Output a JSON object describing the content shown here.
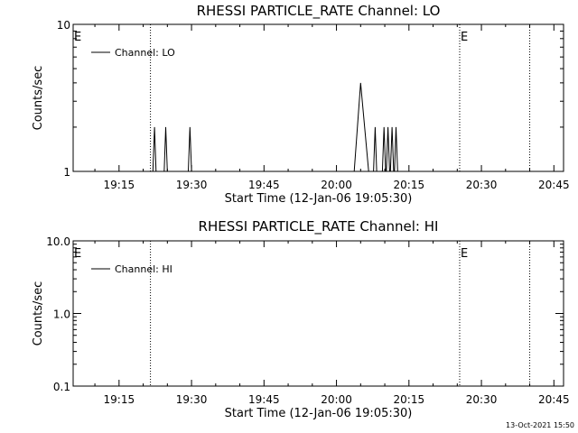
{
  "chart_data": [
    {
      "type": "line",
      "title": "RHESSI PARTICLE_RATE Channel: LO",
      "xlabel": "Start Time (12-Jan-06 19:05:30)",
      "ylabel": "Counts/sec",
      "y_scale": "log",
      "ylim": [
        1,
        10
      ],
      "y_ticks": [
        1,
        10
      ],
      "y_tick_labels": [
        "1",
        "10"
      ],
      "xlim": [
        "19:05:30",
        "20:47:00"
      ],
      "x_ticks": [
        "19:15",
        "19:30",
        "19:45",
        "20:00",
        "20:15",
        "20:30",
        "20:45"
      ],
      "legend": {
        "position": "top-left",
        "entries": [
          "Channel: LO"
        ]
      },
      "event_lines": [
        "19:21:30",
        "20:25:30",
        "20:40:00"
      ],
      "markers": [
        {
          "label": "E",
          "time": "19:05:30"
        },
        {
          "label": "E",
          "time": "20:25:30"
        }
      ],
      "series": [
        {
          "name": "Channel: LO",
          "x": [
            "19:22:00",
            "19:22:20",
            "19:22:40",
            "19:24:20",
            "19:24:40",
            "19:25:00",
            "19:29:20",
            "19:29:40",
            "19:30:00",
            "20:03:40",
            "20:05:00",
            "20:06:40",
            "20:07:40",
            "20:08:00",
            "20:08:20",
            "20:09:30",
            "20:09:50",
            "20:10:10",
            "20:10:20",
            "20:10:40",
            "20:11:00",
            "20:11:10",
            "20:11:30",
            "20:11:50",
            "20:12:00",
            "20:12:20",
            "20:12:40"
          ],
          "y": [
            1,
            2,
            1,
            1,
            2,
            1,
            1,
            2,
            1,
            1,
            4,
            1,
            1,
            2,
            1,
            1,
            2,
            1,
            1,
            2,
            1,
            1,
            2,
            1,
            1,
            2,
            1
          ]
        }
      ]
    },
    {
      "type": "line",
      "title": "RHESSI PARTICLE_RATE Channel: HI",
      "xlabel": "Start Time (12-Jan-06 19:05:30)",
      "ylabel": "Counts/sec",
      "y_scale": "log",
      "ylim": [
        0.1,
        10
      ],
      "y_ticks": [
        0.1,
        1,
        10
      ],
      "y_tick_labels": [
        "0.1",
        "1.0",
        "10.0"
      ],
      "xlim": [
        "19:05:30",
        "20:47:00"
      ],
      "x_ticks": [
        "19:15",
        "19:30",
        "19:45",
        "20:00",
        "20:15",
        "20:30",
        "20:45"
      ],
      "legend": {
        "position": "top-left",
        "entries": [
          "Channel: HI"
        ]
      },
      "event_lines": [
        "19:21:30",
        "20:25:30",
        "20:40:00"
      ],
      "markers": [
        {
          "label": "E",
          "time": "19:05:30"
        },
        {
          "label": "E",
          "time": "20:25:30"
        }
      ],
      "series": [
        {
          "name": "Channel: HI",
          "x": [],
          "y": []
        }
      ]
    }
  ],
  "footer": {
    "timestamp": "13-Oct-2021 15:50"
  }
}
